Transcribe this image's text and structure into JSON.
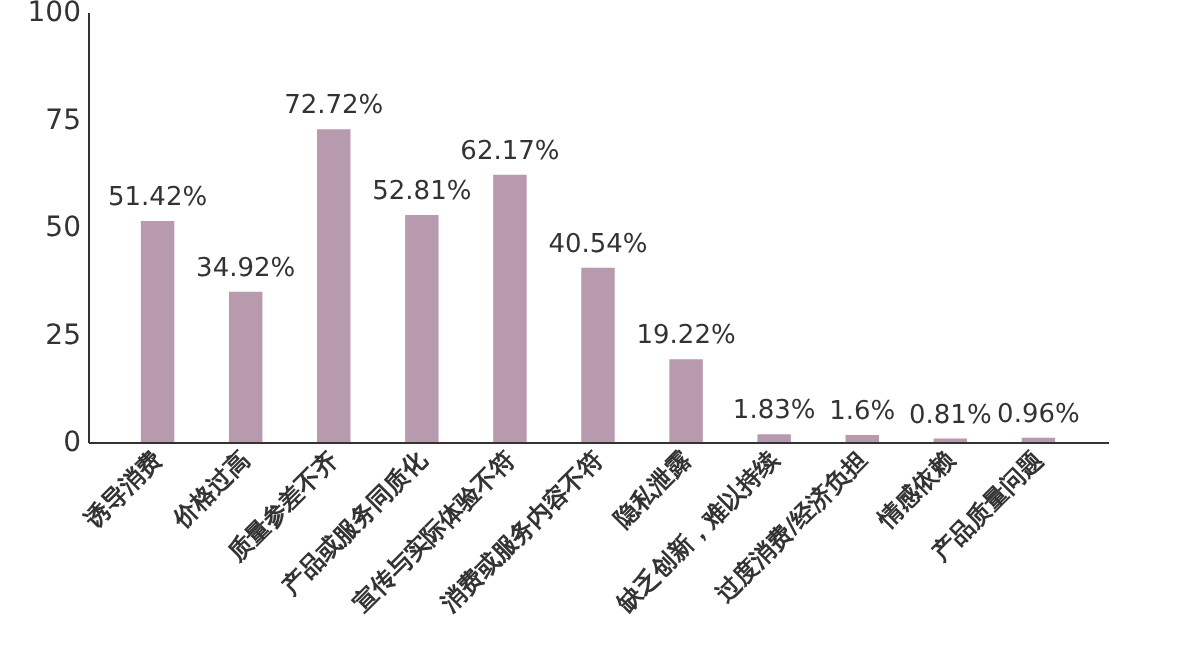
{
  "chart_data": {
    "type": "bar",
    "categories": [
      "诱导消费",
      "价格过高",
      "质量参差不齐",
      "产品或服务同质化",
      "宣传与实际体验不符",
      "消费或服务内容不符",
      "隐私泄露",
      "缺乏创新，难以持续",
      "过度消费/经济负担",
      "情感依赖",
      "产品质量问题"
    ],
    "values": [
      51.42,
      34.92,
      72.72,
      52.81,
      62.17,
      40.54,
      19.22,
      1.83,
      1.6,
      0.81,
      0.96
    ],
    "value_labels": [
      "51.42%",
      "34.92%",
      "72.72%",
      "52.81%",
      "62.17%",
      "40.54%",
      "19.22%",
      "1.83%",
      "1.6%",
      "0.81%",
      "0.96%"
    ],
    "color": "#b89aae",
    "ylim": [
      0,
      100
    ],
    "yticks": [
      0,
      25,
      50,
      75,
      100
    ]
  }
}
